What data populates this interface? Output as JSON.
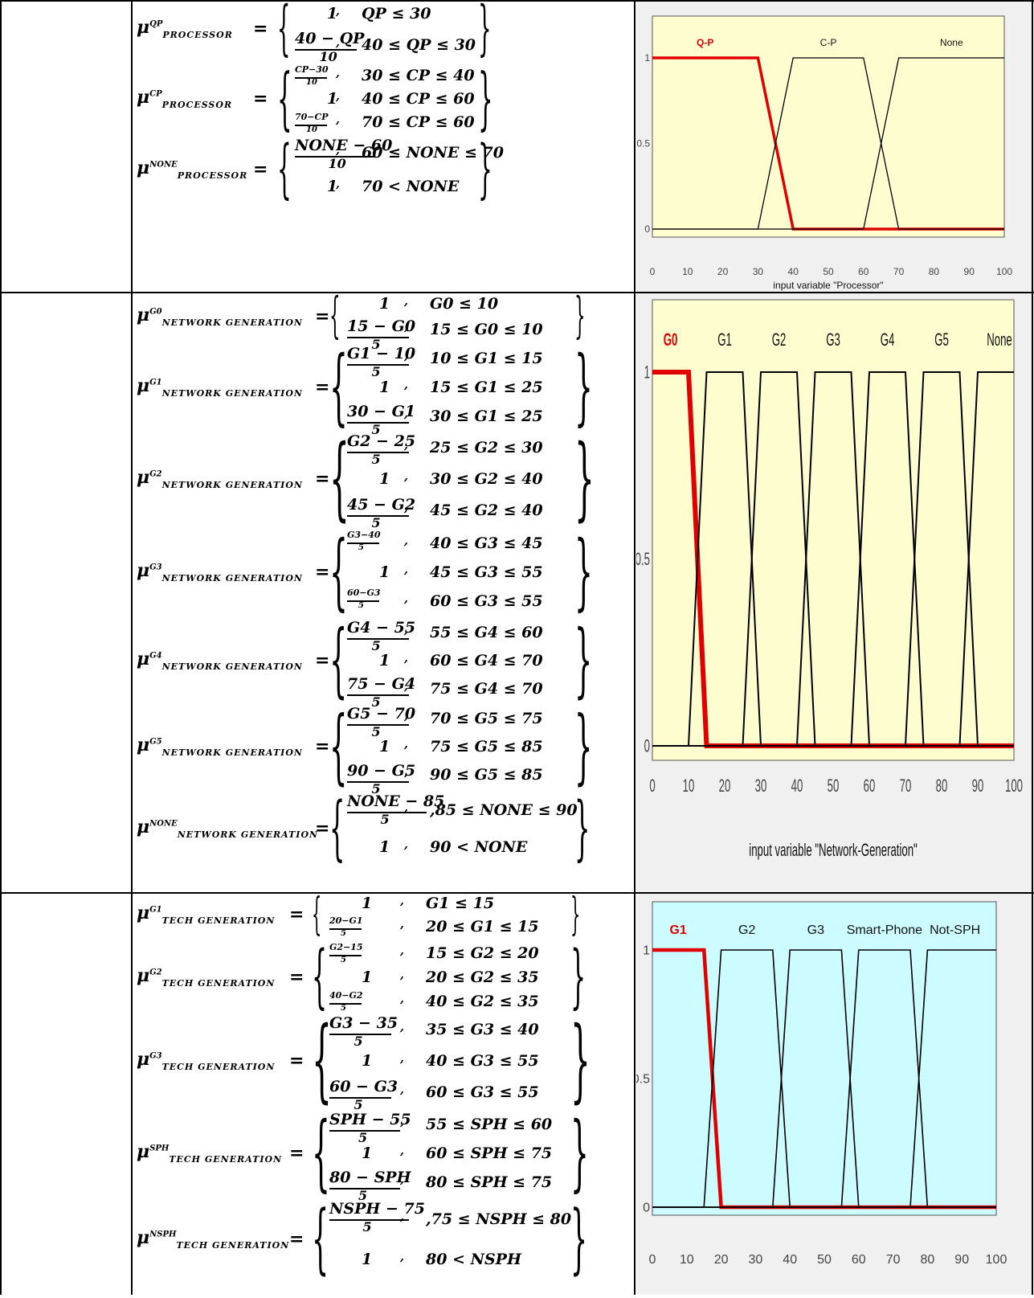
{
  "table": {
    "rows": [
      {
        "equations": [
          {
            "mu_sup": "QP",
            "mu_sub": "PROCESSOR",
            "pieces": [
              {
                "expr": "1",
                "cond": "QP ≤ 30"
              },
              {
                "expr": "40 − QP",
                "den": "10",
                "cond": "40 ≤ QP ≤ 30"
              }
            ]
          },
          {
            "mu_sup": "CP",
            "mu_sub": "PROCESSOR",
            "pieces": [
              {
                "expr": "CP−30",
                "den": "10",
                "cond": "30 ≤ CP ≤ 40"
              },
              {
                "expr": "1",
                "cond": "40 ≤ CP ≤ 60"
              },
              {
                "expr": "70−CP",
                "den": "10",
                "cond": "70 ≤ CP ≤ 60"
              }
            ]
          },
          {
            "mu_sup": "NONE",
            "mu_sub": "PROCESSOR",
            "pieces": [
              {
                "expr": "NONE − 60",
                "den": "10",
                "cond": "60 ≤ NONE ≤ 70"
              },
              {
                "expr": "1",
                "cond": "70 < NONE"
              }
            ]
          }
        ]
      },
      {
        "equations": [
          {
            "mu_sup": "G0",
            "mu_sub": "NETWORK GENERATION",
            "pieces": [
              {
                "expr": "1",
                "cond": "G0 ≤ 10"
              },
              {
                "expr": "15 − G0",
                "den": "5",
                "cond": "15 ≤ G0 ≤ 10"
              }
            ]
          },
          {
            "mu_sup": "G1",
            "mu_sub": "NETWORK GENERATION",
            "pieces": [
              {
                "expr": "G1 − 10",
                "den": "5",
                "cond": "10 ≤ G1 ≤ 15"
              },
              {
                "expr": "1",
                "cond": "15 ≤ G1 ≤ 25"
              },
              {
                "expr": "30 − G1",
                "den": "5",
                "cond": "30 ≤ G1 ≤ 25"
              }
            ]
          },
          {
            "mu_sup": "G2",
            "mu_sub": "NETWORK GENERATION",
            "pieces": [
              {
                "expr": "G2 − 25",
                "den": "5",
                "cond": "25 ≤ G2 ≤ 30"
              },
              {
                "expr": "1",
                "cond": "30 ≤ G2 ≤ 40"
              },
              {
                "expr": "45 − G2",
                "den": "5",
                "cond": "45 ≤ G2 ≤ 40"
              }
            ]
          },
          {
            "mu_sup": "G3",
            "mu_sub": "NETWORK GENERATION",
            "pieces": [
              {
                "expr": "G3−40",
                "den": "5",
                "cond": "40 ≤ G3 ≤ 45"
              },
              {
                "expr": "1",
                "cond": "45 ≤ G3 ≤ 55"
              },
              {
                "expr": "60−G3",
                "den": "5",
                "cond": "60 ≤ G3 ≤ 55"
              }
            ]
          },
          {
            "mu_sup": "G4",
            "mu_sub": "NETWORK GENERATION",
            "pieces": [
              {
                "expr": "G4 − 55",
                "den": "5",
                "cond": "55 ≤ G4 ≤ 60"
              },
              {
                "expr": "1",
                "cond": "60 ≤ G4 ≤ 70"
              },
              {
                "expr": "75 − G4",
                "den": "5",
                "cond": "75 ≤ G4 ≤ 70"
              }
            ]
          },
          {
            "mu_sup": "G5",
            "mu_sub": "NETWORK GENERATION",
            "pieces": [
              {
                "expr": "G5 − 70",
                "den": "5",
                "cond": "70 ≤ G5 ≤ 75"
              },
              {
                "expr": "1",
                "cond": "75 ≤ G5 ≤ 85"
              },
              {
                "expr": "90 − G5",
                "den": "5",
                "cond": "90 ≤ G5 ≤ 85"
              }
            ]
          },
          {
            "mu_sup": "NONE",
            "mu_sub": "NETWORK GENERATION",
            "pieces": [
              {
                "expr": "NONE − 85",
                "den": "5",
                "cond": ",85 ≤ NONE ≤ 90"
              },
              {
                "expr": "1",
                "cond": "90 < NONE"
              }
            ]
          }
        ]
      },
      {
        "equations": [
          {
            "mu_sup": "G1",
            "mu_sub": "TECH GENERATION",
            "pieces": [
              {
                "expr": "1",
                "cond": "G1 ≤ 15"
              },
              {
                "expr": "20−G1",
                "den": "5",
                "cond": "20 ≤ G1 ≤ 15"
              }
            ]
          },
          {
            "mu_sup": "G2",
            "mu_sub": "TECH GENERATION",
            "pieces": [
              {
                "expr": "G2−15",
                "den": "5",
                "cond": "15 ≤ G2 ≤ 20"
              },
              {
                "expr": "1",
                "cond": "20 ≤ G2 ≤ 35"
              },
              {
                "expr": "40−G2",
                "den": "5",
                "cond": "40 ≤ G2 ≤ 35"
              }
            ]
          },
          {
            "mu_sup": "G3",
            "mu_sub": "TECH GENERATION",
            "pieces": [
              {
                "expr": "G3 − 35",
                "den": "5",
                "cond": "35 ≤ G3 ≤ 40"
              },
              {
                "expr": "1",
                "cond": "40 ≤ G3 ≤ 55"
              },
              {
                "expr": "60 − G3",
                "den": "5",
                "cond": "60 ≤ G3 ≤ 55"
              }
            ]
          },
          {
            "mu_sup": "SPH",
            "mu_sub": "TECH GENERATION",
            "pieces": [
              {
                "expr": "SPH − 55",
                "den": "5",
                "cond": "55 ≤ SPH ≤ 60"
              },
              {
                "expr": "1",
                "cond": "60 ≤ SPH ≤ 75"
              },
              {
                "expr": "80 − SPH",
                "den": "5",
                "cond": "80 ≤ SPH ≤ 75"
              }
            ]
          },
          {
            "mu_sup": "NSPH",
            "mu_sub": "TECH GENERATION",
            "pieces": [
              {
                "expr": "NSPH − 75",
                "den": "5",
                "cond": ",75 ≤ NSPH ≤ 80"
              },
              {
                "expr": "1",
                "cond": "80 < NSPH"
              }
            ]
          }
        ]
      }
    ]
  },
  "chart_data": [
    {
      "type": "line",
      "xlabel": "input variable \"Processor\"",
      "xlim": [
        0,
        100
      ],
      "ylim": [
        0,
        1
      ],
      "xticks": [
        "0",
        "10",
        "20",
        "30",
        "40",
        "50",
        "60",
        "70",
        "80",
        "90",
        "100"
      ],
      "yticks": [
        "0",
        "0.5",
        "1"
      ],
      "background": "#fefdd0",
      "highlight_color": "#e00000",
      "series": [
        {
          "name": "Q-P",
          "highlighted": true,
          "x": [
            0,
            30,
            40,
            100
          ],
          "y": [
            1,
            1,
            0,
            0
          ]
        },
        {
          "name": "C-P",
          "x": [
            0,
            30,
            40,
            60,
            70,
            100
          ],
          "y": [
            0,
            0,
            1,
            1,
            0,
            0
          ]
        },
        {
          "name": "None",
          "x": [
            0,
            60,
            70,
            100
          ],
          "y": [
            0,
            0,
            1,
            1
          ]
        }
      ]
    },
    {
      "type": "line",
      "xlabel": "input variable \"Network-Generation\"",
      "xlim": [
        0,
        100
      ],
      "ylim": [
        0,
        1
      ],
      "xticks": [
        "0",
        "10",
        "20",
        "30",
        "40",
        "50",
        "60",
        "70",
        "80",
        "90",
        "100"
      ],
      "yticks": [
        "0",
        "0.5",
        "1"
      ],
      "background": "#fefdd0",
      "highlight_color": "#e00000",
      "series": [
        {
          "name": "G0",
          "highlighted": true,
          "x": [
            0,
            10,
            15,
            100
          ],
          "y": [
            1,
            1,
            0,
            0
          ]
        },
        {
          "name": "G1",
          "x": [
            0,
            10,
            15,
            25,
            30,
            100
          ],
          "y": [
            0,
            0,
            1,
            1,
            0,
            0
          ]
        },
        {
          "name": "G2",
          "x": [
            0,
            25,
            30,
            40,
            45,
            100
          ],
          "y": [
            0,
            0,
            1,
            1,
            0,
            0
          ]
        },
        {
          "name": "G3",
          "x": [
            0,
            40,
            45,
            55,
            60,
            100
          ],
          "y": [
            0,
            0,
            1,
            1,
            0,
            0
          ]
        },
        {
          "name": "G4",
          "x": [
            0,
            55,
            60,
            70,
            75,
            100
          ],
          "y": [
            0,
            0,
            1,
            1,
            0,
            0
          ]
        },
        {
          "name": "G5",
          "x": [
            0,
            70,
            75,
            85,
            90,
            100
          ],
          "y": [
            0,
            0,
            1,
            1,
            0,
            0
          ]
        },
        {
          "name": "None",
          "x": [
            0,
            85,
            90,
            100
          ],
          "y": [
            0,
            0,
            1,
            1
          ]
        }
      ]
    },
    {
      "type": "line",
      "xlabel": "",
      "xlim": [
        0,
        100
      ],
      "ylim": [
        0,
        1
      ],
      "xticks": [
        "0",
        "10",
        "20",
        "30",
        "40",
        "50",
        "60",
        "70",
        "80",
        "90",
        "100"
      ],
      "yticks": [
        "0",
        "0.5",
        "1"
      ],
      "background": "#ccfcff",
      "highlight_color": "#e00000",
      "series": [
        {
          "name": "G1",
          "highlighted": true,
          "x": [
            0,
            15,
            20,
            100
          ],
          "y": [
            1,
            1,
            0,
            0
          ]
        },
        {
          "name": "G2",
          "x": [
            0,
            15,
            20,
            35,
            40,
            100
          ],
          "y": [
            0,
            0,
            1,
            1,
            0,
            0
          ]
        },
        {
          "name": "G3",
          "x": [
            0,
            35,
            40,
            55,
            60,
            100
          ],
          "y": [
            0,
            0,
            1,
            1,
            0,
            0
          ]
        },
        {
          "name": "Smart-Phone",
          "x": [
            0,
            55,
            60,
            75,
            80,
            100
          ],
          "y": [
            0,
            0,
            1,
            1,
            0,
            0
          ]
        },
        {
          "name": "Not-SPH",
          "x": [
            0,
            75,
            80,
            100
          ],
          "y": [
            0,
            0,
            1,
            1
          ]
        }
      ]
    }
  ]
}
